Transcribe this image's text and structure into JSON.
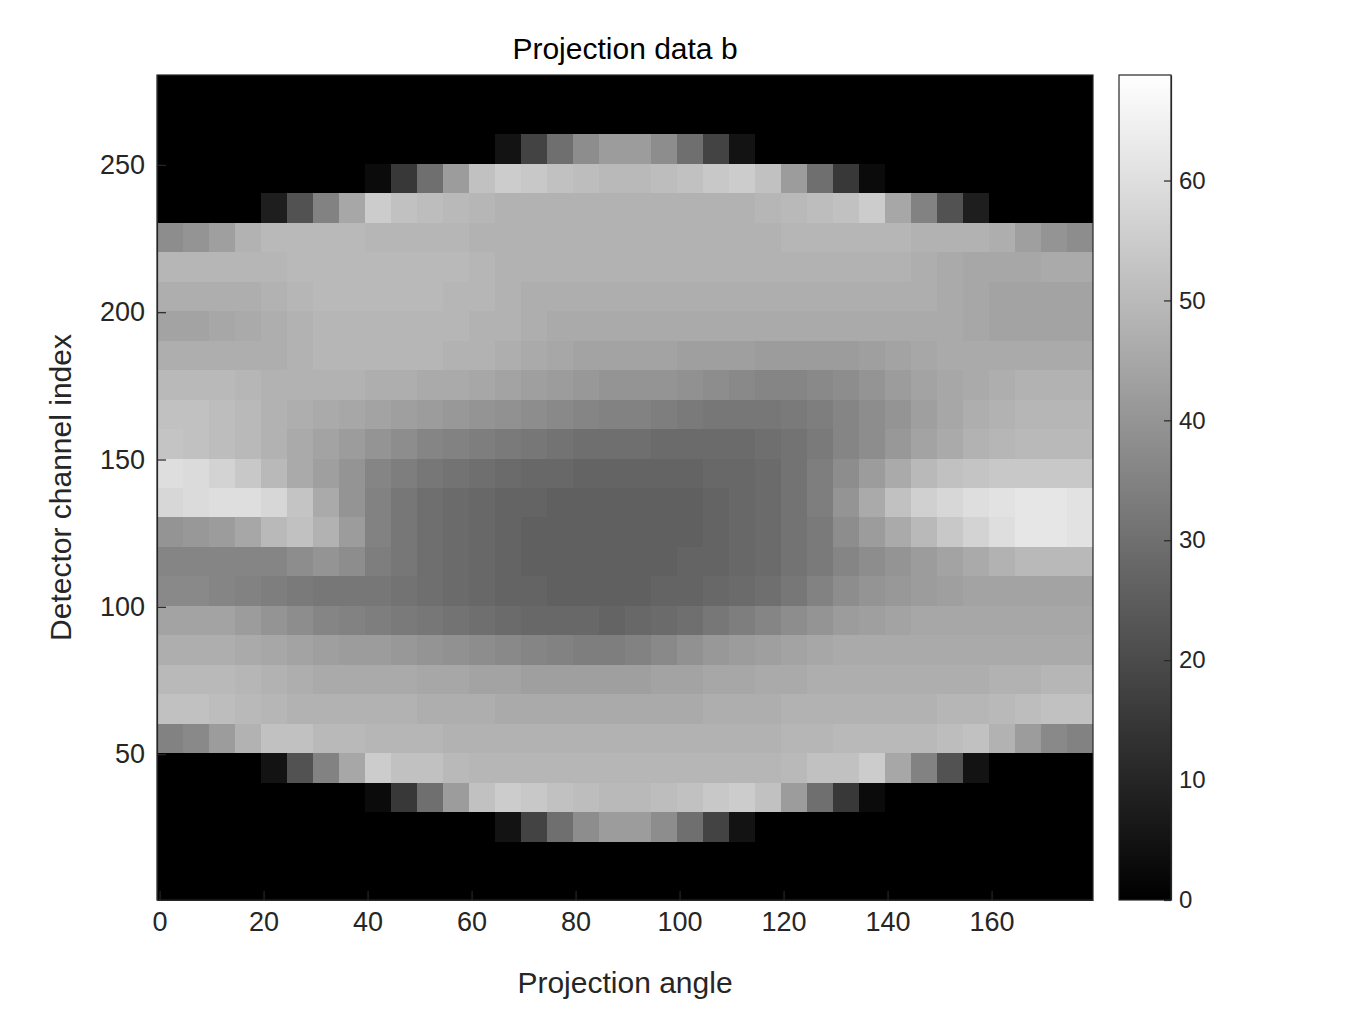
{
  "chart_data": {
    "type": "heatmap",
    "title": "Projection data b",
    "xlabel": "Projection angle",
    "ylabel": "Detector channel index",
    "color": "gray",
    "xlim": [
      -0.5,
      179.5
    ],
    "ylim": [
      0.5,
      280.5
    ],
    "xticks": [
      0,
      20,
      40,
      60,
      80,
      100,
      120,
      140,
      160
    ],
    "yticks": [
      50,
      100,
      150,
      200,
      250
    ],
    "colorbar_range": [
      0,
      68.8
    ],
    "colorbar_ticks": [
      0,
      10,
      20,
      30,
      40,
      50,
      60
    ],
    "x": [
      2,
      7,
      12,
      17,
      22,
      27,
      32,
      37,
      42,
      47,
      52,
      57,
      62,
      67,
      72,
      77,
      82,
      87,
      92,
      97,
      102,
      107,
      112,
      117,
      122,
      127,
      132,
      137,
      142,
      147,
      152,
      157,
      162,
      167,
      172,
      177
    ],
    "y": [
      5.5,
      15.5,
      25.5,
      35.5,
      45.5,
      55.5,
      65.5,
      75.5,
      85.5,
      95.5,
      105.5,
      115.5,
      125.5,
      135.5,
      145.5,
      155.5,
      165.5,
      175.5,
      185.5,
      195.5,
      205.5,
      215.5,
      225.5,
      235.5,
      245.5,
      255.5,
      265.5,
      275.5
    ],
    "values": [
      [
        0,
        0,
        0,
        0,
        0,
        35,
        52,
        50,
        47,
        44,
        37,
        36,
        40,
        58,
        60,
        53,
        52,
        50,
        47,
        44,
        47,
        49,
        38,
        0,
        0,
        0,
        0,
        0
      ],
      [
        0,
        0,
        0,
        0,
        0,
        37,
        52,
        50,
        47,
        44,
        37,
        36,
        41,
        59,
        59,
        52,
        52,
        50,
        47,
        44,
        47,
        49,
        40,
        0,
        0,
        0,
        0,
        0
      ],
      [
        0,
        0,
        0,
        0,
        0,
        42,
        51,
        50,
        47,
        44,
        36,
        36,
        42,
        60,
        57,
        51,
        51,
        50,
        47,
        45,
        47,
        49,
        43,
        0,
        0,
        0,
        0,
        0
      ],
      [
        0,
        0,
        0,
        0,
        0,
        48,
        50,
        49,
        46,
        42,
        35,
        36,
        45,
        60,
        54,
        50,
        50,
        49,
        47,
        46,
        47,
        49,
        48,
        0,
        0,
        0,
        0,
        0
      ],
      [
        0,
        0,
        0,
        0,
        5,
        52,
        49,
        48,
        45,
        40,
        34,
        36,
        50,
        58,
        50,
        48,
        48,
        48,
        47,
        47,
        48,
        49,
        50,
        8,
        0,
        0,
        0,
        0
      ],
      [
        0,
        0,
        0,
        0,
        22,
        52,
        48,
        47,
        44,
        38,
        33,
        38,
        52,
        53,
        46,
        46,
        47,
        48,
        48,
        48,
        49,
        50,
        50,
        22,
        0,
        0,
        0,
        0
      ],
      [
        0,
        0,
        0,
        0,
        35,
        50,
        48,
        46,
        43,
        36,
        32,
        40,
        48,
        46,
        43,
        44,
        46,
        48,
        49,
        49,
        50,
        50,
        50,
        35,
        0,
        0,
        0,
        0
      ],
      [
        0,
        0,
        0,
        0,
        45,
        50,
        48,
        46,
        42,
        35,
        32,
        38,
        42,
        40,
        40,
        42,
        45,
        48,
        49,
        49,
        50,
        50,
        50,
        45,
        0,
        0,
        0,
        0
      ],
      [
        0,
        0,
        0,
        3,
        55,
        49,
        48,
        46,
        42,
        34,
        32,
        34,
        35,
        35,
        36,
        40,
        44,
        47,
        49,
        49,
        50,
        50,
        49,
        55,
        3,
        0,
        0,
        0
      ],
      [
        0,
        0,
        0,
        15,
        52,
        49,
        48,
        46,
        41,
        33,
        31,
        32,
        32,
        32,
        34,
        38,
        43,
        47,
        49,
        49,
        50,
        50,
        49,
        52,
        15,
        0,
        0,
        0
      ],
      [
        0,
        0,
        0,
        30,
        52,
        49,
        47,
        45,
        40,
        32,
        30,
        30,
        30,
        30,
        32,
        36,
        42,
        46,
        49,
        49,
        50,
        50,
        49,
        51,
        30,
        0,
        0,
        0
      ],
      [
        0,
        0,
        0,
        42,
        50,
        48,
        47,
        45,
        39,
        31,
        29,
        29,
        29,
        29,
        31,
        35,
        41,
        46,
        48,
        49,
        49,
        50,
        49,
        50,
        42,
        0,
        0,
        0
      ],
      [
        0,
        0,
        0,
        52,
        49,
        48,
        47,
        44,
        38,
        30,
        28,
        28,
        28,
        28,
        30,
        34,
        40,
        45,
        48,
        48,
        49,
        49,
        48,
        49,
        52,
        0,
        0,
        0
      ],
      [
        0,
        0,
        5,
        55,
        49,
        48,
        46,
        44,
        37,
        29,
        27,
        27,
        27,
        27,
        29,
        33,
        39,
        44,
        47,
        48,
        48,
        48,
        48,
        48,
        55,
        5,
        0,
        0
      ],
      [
        0,
        0,
        18,
        54,
        49,
        48,
        46,
        43,
        36,
        28,
        27,
        26,
        26,
        27,
        28,
        32,
        38,
        43,
        46,
        47,
        47,
        48,
        48,
        48,
        54,
        18,
        0,
        0
      ],
      [
        0,
        0,
        30,
        52,
        49,
        48,
        46,
        43,
        35,
        28,
        26,
        26,
        26,
        26,
        28,
        31,
        37,
        42,
        45,
        46,
        47,
        48,
        48,
        48,
        52,
        30,
        0,
        0
      ],
      [
        0,
        0,
        38,
        51,
        49,
        48,
        46,
        43,
        34,
        28,
        26,
        26,
        26,
        26,
        27,
        30,
        36,
        41,
        44,
        46,
        47,
        48,
        48,
        48,
        51,
        38,
        0,
        0
      ],
      [
        0,
        0,
        42,
        50,
        49,
        48,
        46,
        43,
        34,
        27,
        26,
        26,
        26,
        26,
        27,
        30,
        35,
        40,
        44,
        46,
        47,
        48,
        48,
        48,
        50,
        42,
        0,
        0
      ],
      [
        0,
        0,
        42,
        50,
        49,
        48,
        46,
        43,
        35,
        28,
        26,
        26,
        26,
        26,
        27,
        30,
        35,
        40,
        44,
        46,
        47,
        48,
        48,
        48,
        50,
        42,
        0,
        0
      ],
      [
        0,
        0,
        38,
        51,
        49,
        48,
        46,
        44,
        37,
        29,
        27,
        26,
        26,
        26,
        27,
        29,
        34,
        40,
        44,
        46,
        47,
        48,
        48,
        48,
        51,
        38,
        0,
        0
      ],
      [
        0,
        0,
        30,
        52,
        49,
        48,
        46,
        44,
        39,
        30,
        27,
        27,
        26,
        26,
        27,
        29,
        33,
        39,
        43,
        46,
        47,
        48,
        48,
        48,
        52,
        30,
        0,
        0
      ],
      [
        0,
        0,
        18,
        54,
        49,
        48,
        47,
        45,
        41,
        32,
        28,
        27,
        27,
        27,
        28,
        29,
        32,
        38,
        43,
        46,
        47,
        48,
        48,
        48,
        54,
        18,
        0,
        0
      ],
      [
        0,
        0,
        5,
        55,
        49,
        48,
        47,
        45,
        42,
        34,
        29,
        28,
        28,
        28,
        28,
        29,
        32,
        37,
        43,
        46,
        47,
        48,
        48,
        48,
        55,
        5,
        0,
        0
      ],
      [
        0,
        0,
        0,
        52,
        49,
        48,
        47,
        46,
        43,
        36,
        30,
        29,
        29,
        29,
        29,
        30,
        32,
        36,
        42,
        46,
        47,
        48,
        48,
        49,
        52,
        0,
        0,
        0
      ],
      [
        0,
        0,
        0,
        42,
        50,
        49,
        48,
        46,
        44,
        38,
        32,
        31,
        31,
        31,
        31,
        31,
        33,
        36,
        42,
        46,
        47,
        48,
        49,
        50,
        42,
        0,
        0,
        0
      ],
      [
        0,
        0,
        0,
        30,
        52,
        49,
        48,
        47,
        45,
        40,
        35,
        33,
        33,
        34,
        34,
        33,
        34,
        37,
        42,
        46,
        47,
        48,
        49,
        51,
        30,
        0,
        0,
        0
      ],
      [
        0,
        0,
        0,
        15,
        52,
        50,
        48,
        47,
        46,
        42,
        38,
        36,
        38,
        40,
        38,
        36,
        36,
        38,
        42,
        46,
        47,
        48,
        49,
        52,
        15,
        0,
        0,
        0
      ],
      [
        0,
        0,
        0,
        3,
        55,
        50,
        48,
        47,
        46,
        43,
        40,
        38,
        42,
        46,
        42,
        38,
        38,
        40,
        43,
        46,
        47,
        48,
        49,
        55,
        3,
        0,
        0,
        0
      ],
      [
        0,
        0,
        0,
        0,
        45,
        50,
        48,
        47,
        46,
        44,
        41,
        40,
        46,
        52,
        46,
        41,
        40,
        42,
        44,
        46,
        47,
        48,
        49,
        45,
        0,
        0,
        0,
        0
      ],
      [
        0,
        0,
        0,
        0,
        35,
        50,
        48,
        47,
        46,
        45,
        42,
        42,
        50,
        56,
        50,
        44,
        43,
        44,
        45,
        46,
        47,
        47,
        48,
        35,
        0,
        0,
        0,
        0
      ],
      [
        0,
        0,
        0,
        0,
        22,
        51,
        49,
        47,
        46,
        45,
        43,
        44,
        54,
        58,
        52,
        46,
        45,
        45,
        46,
        46,
        46,
        46,
        48,
        22,
        0,
        0,
        0,
        0
      ],
      [
        0,
        0,
        0,
        0,
        5,
        52,
        49,
        47,
        46,
        45,
        44,
        46,
        57,
        60,
        53,
        48,
        47,
        46,
        46,
        45,
        45,
        45,
        48,
        8,
        0,
        0,
        0,
        0
      ],
      [
        0,
        0,
        0,
        0,
        0,
        48,
        50,
        48,
        46,
        45,
        44,
        48,
        60,
        61,
        54,
        49,
        48,
        47,
        46,
        44,
        44,
        45,
        47,
        0,
        0,
        0,
        0,
        0
      ],
      [
        0,
        0,
        0,
        0,
        0,
        42,
        51,
        48,
        46,
        45,
        44,
        50,
        62,
        62,
        54,
        50,
        49,
        48,
        46,
        44,
        44,
        45,
        43,
        0,
        0,
        0,
        0,
        0
      ],
      [
        0,
        0,
        0,
        0,
        0,
        37,
        52,
        49,
        46,
        45,
        44,
        50,
        62,
        62,
        54,
        50,
        49,
        48,
        46,
        44,
        44,
        46,
        40,
        0,
        0,
        0,
        0,
        0
      ],
      [
        0,
        0,
        0,
        0,
        0,
        35,
        52,
        49,
        46,
        45,
        44,
        50,
        61,
        61,
        54,
        50,
        49,
        48,
        46,
        44,
        44,
        46,
        38,
        0,
        0,
        0,
        0,
        0
      ]
    ]
  }
}
